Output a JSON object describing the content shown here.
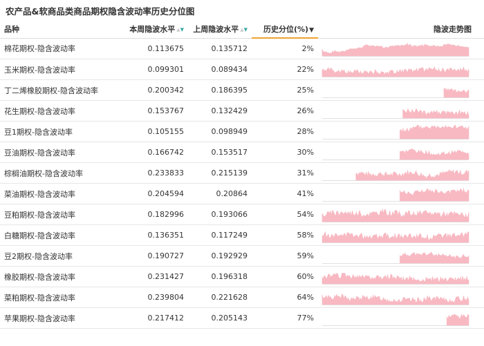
{
  "title": "农产品&软商品类商品期权隐含波动率历史分位图",
  "colors": {
    "trend_fill": "#f8b9c2",
    "trend_baseline": "#e0e0e0",
    "sort_accent": "#f0a030"
  },
  "chart_data": {
    "type": "table",
    "headers": {
      "name": "品种",
      "this_week": "本周隐波水平",
      "last_week": "上周隐波水平",
      "percentile": "历史分位(%)",
      "trend": "隐波走势图"
    },
    "sort": {
      "column": "percentile",
      "order": "ascending"
    },
    "rows": [
      {
        "name": "棉花期权-隐含波动率",
        "this_week": "0.113675",
        "last_week": "0.135712",
        "percentile": "2%",
        "trend_start": 0.0,
        "trend_base": 0.15,
        "trend_var": 0.15,
        "trend_spike": 0.6,
        "seed": 1
      },
      {
        "name": "玉米期权-隐含波动率",
        "this_week": "0.099301",
        "last_week": "0.089434",
        "percentile": "22%",
        "trend_start": 0.0,
        "trend_base": 0.42,
        "trend_var": 0.35,
        "trend_spike": 0,
        "seed": 2
      },
      {
        "name": "丁二烯橡胶期权-隐含波动率",
        "this_week": "0.200342",
        "last_week": "0.186395",
        "percentile": "25%",
        "trend_start": 0.83,
        "trend_base": 0.5,
        "trend_var": 0.3,
        "trend_spike": 0,
        "seed": 3
      },
      {
        "name": "花生期权-隐含波动率",
        "this_week": "0.153767",
        "last_week": "0.132429",
        "percentile": "26%",
        "trend_start": 0.55,
        "trend_base": 0.45,
        "trend_var": 0.4,
        "trend_spike": 0,
        "seed": 4
      },
      {
        "name": "豆1期权-隐含波动率",
        "this_week": "0.105155",
        "last_week": "0.098949",
        "percentile": "28%",
        "trend_start": 0.53,
        "trend_base": 0.5,
        "trend_var": 0.35,
        "trend_spike": 0,
        "seed": 5
      },
      {
        "name": "豆油期权-隐含波动率",
        "this_week": "0.166742",
        "last_week": "0.153517",
        "percentile": "30%",
        "trend_start": 0.53,
        "trend_base": 0.55,
        "trend_var": 0.3,
        "trend_spike": 0,
        "seed": 6
      },
      {
        "name": "棕榈油期权-隐含波动率",
        "this_week": "0.233833",
        "last_week": "0.215139",
        "percentile": "31%",
        "trend_start": 0.23,
        "trend_base": 0.4,
        "trend_var": 0.4,
        "trend_spike": 0,
        "seed": 7
      },
      {
        "name": "菜油期权-隐含波动率",
        "this_week": "0.204594",
        "last_week": "0.20864",
        "percentile": "41%",
        "trend_start": 0.53,
        "trend_base": 0.55,
        "trend_var": 0.35,
        "trend_spike": 0,
        "seed": 8
      },
      {
        "name": "豆粕期权-隐含波动率",
        "this_week": "0.182996",
        "last_week": "0.193066",
        "percentile": "54%",
        "trend_start": 0.0,
        "trend_base": 0.4,
        "trend_var": 0.45,
        "trend_spike": 0,
        "seed": 9
      },
      {
        "name": "白糖期权-隐含波动率",
        "this_week": "0.136351",
        "last_week": "0.117249",
        "percentile": "58%",
        "trend_start": 0.0,
        "trend_base": 0.4,
        "trend_var": 0.45,
        "trend_spike": 0,
        "seed": 10
      },
      {
        "name": "豆2期权-隐含波动率",
        "this_week": "0.190727",
        "last_week": "0.192929",
        "percentile": "59%",
        "trend_start": 0.53,
        "trend_base": 0.5,
        "trend_var": 0.3,
        "trend_spike": 0,
        "seed": 11
      },
      {
        "name": "橡胶期权-隐含波动率",
        "this_week": "0.231427",
        "last_week": "0.196318",
        "percentile": "60%",
        "trend_start": 0.0,
        "trend_base": 0.35,
        "trend_var": 0.4,
        "trend_spike": 0,
        "seed": 12
      },
      {
        "name": "菜粕期权-隐含波动率",
        "this_week": "0.239804",
        "last_week": "0.221628",
        "percentile": "64%",
        "trend_start": 0.0,
        "trend_base": 0.45,
        "trend_var": 0.4,
        "trend_spike": 0,
        "seed": 13
      },
      {
        "name": "苹果期权-隐含波动率",
        "this_week": "0.217412",
        "last_week": "0.205143",
        "percentile": "77%",
        "trend_start": 0.85,
        "trend_base": 0.5,
        "trend_var": 0.3,
        "trend_spike": 0,
        "seed": 14
      }
    ]
  }
}
